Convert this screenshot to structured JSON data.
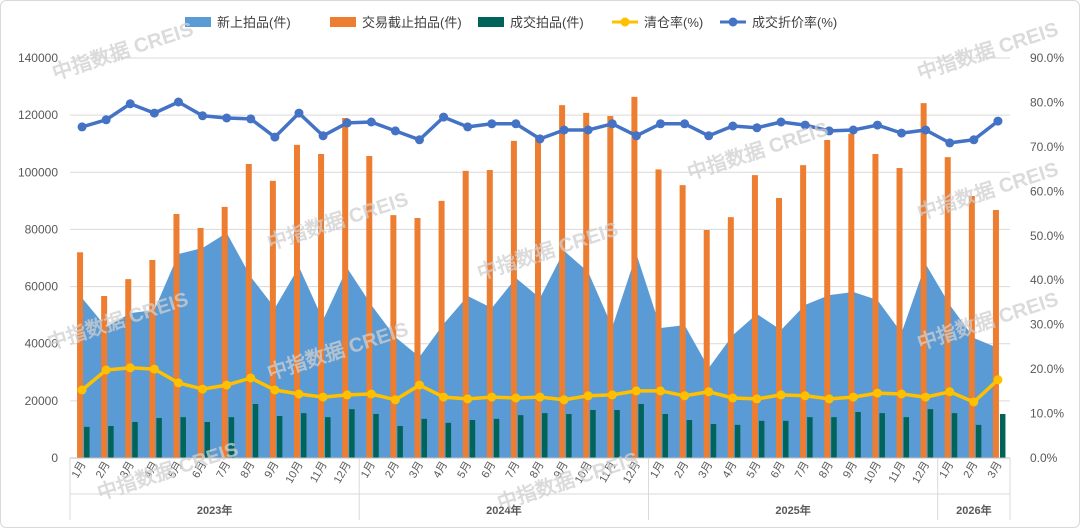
{
  "chart_data": {
    "type": "bar",
    "title": "",
    "watermark": "中指数据 CREIS",
    "years": [
      {
        "label": "2023年",
        "months": 12
      },
      {
        "label": "2024年",
        "months": 12
      },
      {
        "label": "2025年",
        "months": 12
      },
      {
        "label": "2026年",
        "months": 3
      }
    ],
    "categories": [
      "1月",
      "2月",
      "3月",
      "4月",
      "5月",
      "6月",
      "7月",
      "8月",
      "9月",
      "10月",
      "11月",
      "12月",
      "1月",
      "2月",
      "3月",
      "4月",
      "5月",
      "6月",
      "7月",
      "8月",
      "9月",
      "10月",
      "11月",
      "12月",
      "1月",
      "2月",
      "3月",
      "4月",
      "5月",
      "6月",
      "7月",
      "8月",
      "9月",
      "10月",
      "11月",
      "12月",
      "1月",
      "2月",
      "3月"
    ],
    "y_left": {
      "range": [
        0,
        140000
      ],
      "ticks": [
        "0",
        "20000",
        "40000",
        "60000",
        "80000",
        "100000",
        "120000",
        "140000"
      ]
    },
    "y_right": {
      "range": [
        0,
        90
      ],
      "ticks": [
        "0.0%",
        "10.0%",
        "20.0%",
        "30.0%",
        "40.0%",
        "50.0%",
        "60.0%",
        "70.0%",
        "80.0%",
        "90.0%"
      ]
    },
    "grid": true,
    "legend_position": "top",
    "series": [
      {
        "name": "新上拍品(件)",
        "kind": "area",
        "axis": "left",
        "color": "#5b9bd5",
        "values": [
          56000,
          45800,
          50700,
          51800,
          71400,
          73500,
          78800,
          63400,
          52500,
          66900,
          48300,
          66500,
          53600,
          42300,
          35400,
          46900,
          56700,
          52500,
          63000,
          56000,
          72500,
          65100,
          45800,
          71400,
          45500,
          46500,
          31500,
          43000,
          50400,
          44800,
          53600,
          57000,
          58100,
          55300,
          43800,
          67900,
          53600,
          42000,
          38500
        ]
      },
      {
        "name": "交易截止拍品(件)",
        "kind": "bar",
        "axis": "left",
        "color": "#ed7d31",
        "values": [
          72000,
          56700,
          62600,
          69300,
          85400,
          80500,
          87900,
          102900,
          97000,
          109600,
          106400,
          119000,
          105700,
          85000,
          84000,
          90000,
          100500,
          100800,
          111000,
          112000,
          123500,
          120800,
          119700,
          126400,
          101000,
          95500,
          79800,
          84300,
          99000,
          91000,
          102500,
          111300,
          113500,
          106400,
          101500,
          124200,
          105300,
          91700,
          86800
        ]
      },
      {
        "name": "成交拍品(件)",
        "kind": "bar",
        "axis": "left",
        "color": "#00645a",
        "values": [
          10900,
          11200,
          12600,
          14000,
          14300,
          12600,
          14300,
          18900,
          14700,
          15700,
          14300,
          17100,
          15400,
          11200,
          13700,
          12300,
          13300,
          13700,
          15000,
          15700,
          15400,
          16800,
          16800,
          18900,
          15400,
          13300,
          11900,
          11600,
          13000,
          13000,
          14300,
          14300,
          16100,
          15700,
          14300,
          17100,
          15700,
          11600,
          15400
        ]
      },
      {
        "name": "清仓率(%)",
        "kind": "line",
        "axis": "right",
        "color": "#ffc000",
        "values": [
          15.3,
          19.8,
          20.3,
          20.0,
          16.9,
          15.5,
          16.4,
          18.0,
          15.3,
          14.4,
          13.7,
          14.2,
          14.4,
          13.1,
          16.4,
          13.7,
          13.3,
          13.7,
          13.5,
          13.7,
          13.1,
          14.0,
          14.2,
          15.1,
          15.1,
          14.0,
          14.9,
          13.5,
          13.3,
          14.2,
          14.0,
          13.3,
          13.7,
          14.6,
          14.4,
          13.7,
          14.9,
          12.6,
          17.6
        ]
      },
      {
        "name": "成交折价率(%)",
        "kind": "line",
        "axis": "right",
        "color": "#4472c4",
        "values": [
          74.5,
          76.1,
          79.7,
          77.6,
          80.1,
          77.0,
          76.5,
          76.3,
          72.2,
          77.6,
          72.5,
          75.4,
          75.6,
          73.6,
          71.6,
          76.7,
          74.5,
          75.2,
          75.2,
          71.8,
          73.8,
          73.8,
          75.2,
          72.5,
          75.2,
          75.2,
          72.5,
          74.7,
          74.3,
          75.6,
          74.9,
          73.6,
          73.8,
          74.9,
          73.1,
          73.8,
          70.9,
          71.6,
          75.8
        ]
      }
    ]
  }
}
